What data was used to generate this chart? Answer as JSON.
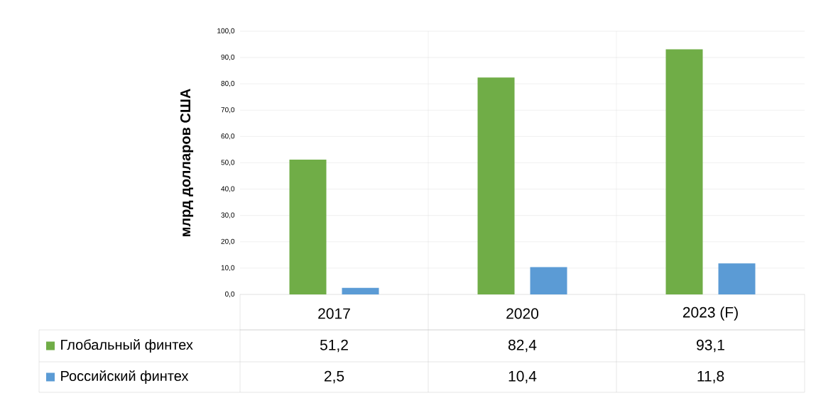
{
  "chart_data": {
    "type": "bar",
    "ylabel": "млрд долларов США",
    "categories": [
      "2017",
      "2020",
      "2023 (F)"
    ],
    "series": [
      {
        "name": "Глобальный финтех",
        "color": "#70ad47",
        "values": [
          51.2,
          82.4,
          93.1
        ],
        "value_labels": [
          "51,2",
          "82,4",
          "93,1"
        ]
      },
      {
        "name": "Российский финтех",
        "color": "#5b9bd5",
        "values": [
          2.5,
          10.4,
          11.8
        ],
        "value_labels": [
          "2,5",
          "10,4",
          "11,8"
        ]
      }
    ],
    "ylim": [
      0,
      100
    ],
    "yticks": [
      {
        "value": 0,
        "label": "0,0"
      },
      {
        "value": 10,
        "label": "10,0"
      },
      {
        "value": 20,
        "label": "20,0"
      },
      {
        "value": 30,
        "label": "30,0"
      },
      {
        "value": 40,
        "label": "40,0"
      },
      {
        "value": 50,
        "label": "50,0"
      },
      {
        "value": 60,
        "label": "60,0"
      },
      {
        "value": 70,
        "label": "70,0"
      },
      {
        "value": 80,
        "label": "80,0"
      },
      {
        "value": 90,
        "label": "90,0"
      },
      {
        "value": 100,
        "label": "100,0"
      }
    ],
    "grid": true,
    "legend": "bottom"
  }
}
